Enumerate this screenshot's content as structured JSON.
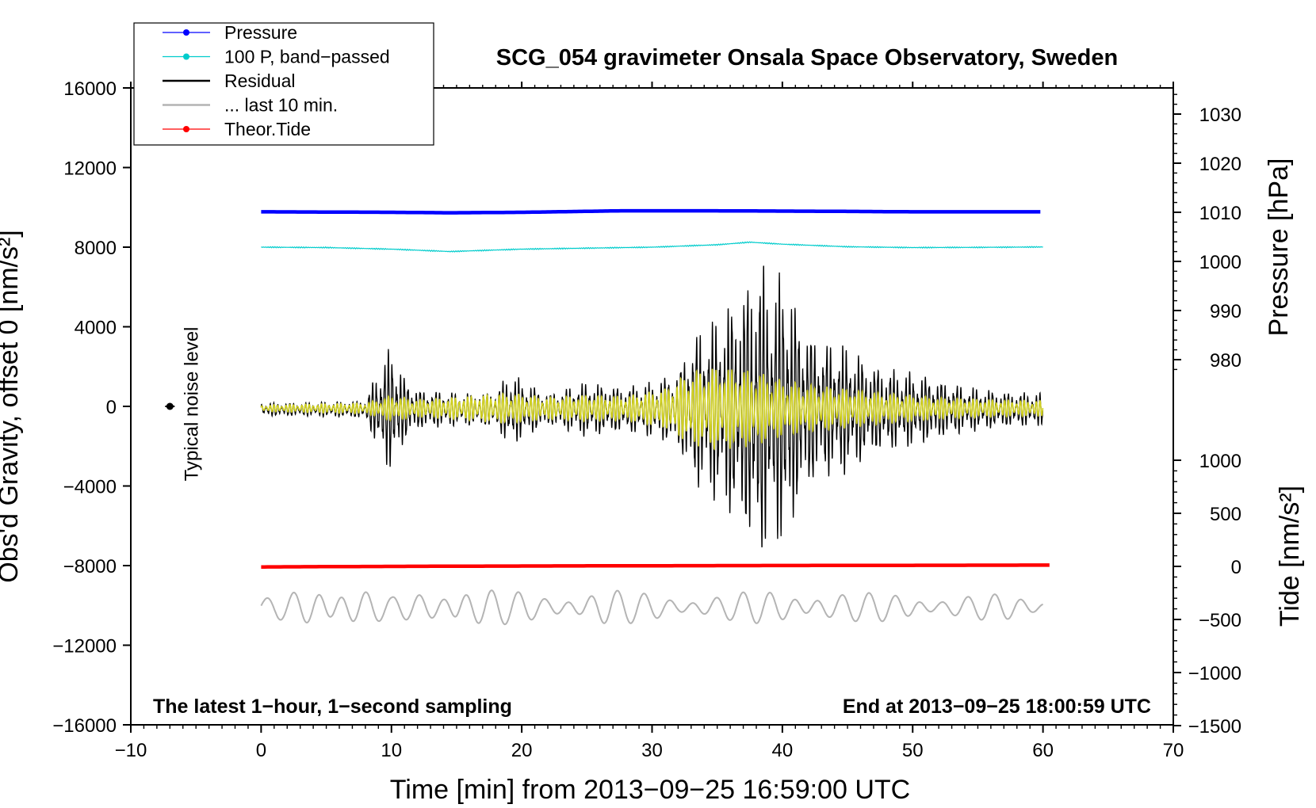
{
  "chart_data": {
    "type": "line",
    "title": "SCG_054 gravimeter Onsala Space Observatory, Sweden",
    "xlabel": "Time [min] from 2013−09−25 16:59:00 UTC",
    "ylabel": "Obs'd Gravity, offset 0 [nm/s²]",
    "ylabel_right_top": "Pressure [hPa]",
    "ylabel_right_bottom": "Tide [nm/s²]",
    "xlim": [
      -10,
      70
    ],
    "ylim": [
      -16000,
      16000
    ],
    "pressure_lim": [
      976,
      1034
    ],
    "tide_lim": [
      -1500,
      1500
    ],
    "xticks": [
      -10,
      0,
      10,
      20,
      30,
      40,
      50,
      60,
      70
    ],
    "yticks": [
      -16000,
      -12000,
      -8000,
      -4000,
      0,
      4000,
      8000,
      12000,
      16000
    ],
    "pressure_ticks": [
      980,
      990,
      1000,
      1010,
      1020,
      1030
    ],
    "tide_ticks": [
      -1500,
      -1000,
      -500,
      0,
      500,
      1000
    ],
    "x_tick_labels": [
      "−10",
      "0",
      "10",
      "20",
      "30",
      "40",
      "50",
      "60",
      "70"
    ],
    "y_tick_labels": [
      "−16000",
      "−12000",
      "−8000",
      "−4000",
      "0",
      "4000",
      "8000",
      "12000",
      "16000"
    ],
    "pressure_tick_labels": [
      "980",
      "990",
      "1000",
      "1010",
      "1020",
      "1030"
    ],
    "tide_tick_labels": [
      "−1500",
      "−1000",
      "−500",
      "0",
      "500",
      "1000"
    ],
    "annotation_left": "The latest 1−hour, 1−second sampling",
    "annotation_right": "End at 2013−09−25 18:00:59 UTC",
    "noise_label": "Typical noise level",
    "noise_point": {
      "x": -7,
      "y": 0
    },
    "legend": [
      {
        "label": "Pressure",
        "color": "#0000ff",
        "marker": true
      },
      {
        "label": "100 P, band−passed",
        "color": "#00cccc",
        "marker": true
      },
      {
        "label": "Residual",
        "color": "#000000",
        "marker": false
      },
      {
        "label": "... last 10 min.",
        "color": "#b4b4b4",
        "marker": false
      },
      {
        "label": "Theor.Tide",
        "color": "#ff0000",
        "marker": true
      }
    ],
    "series": [
      {
        "name": "Pressure",
        "axis": "pressure",
        "color": "#0000ff",
        "x": [
          0,
          10,
          14.5,
          20,
          27.5,
          35,
          44,
          50,
          60
        ],
        "values": [
          1010.1,
          1010.0,
          1009.9,
          1010.0,
          1010.3,
          1010.3,
          1010.2,
          1010.1,
          1010.1
        ]
      },
      {
        "name": "100 P, band−passed",
        "axis": "gravity",
        "color": "#00cccc",
        "x": [
          0,
          5,
          10,
          14.5,
          20,
          25,
          30,
          35,
          37.5,
          40,
          45,
          50,
          55,
          60
        ],
        "values": [
          8000,
          7980,
          7900,
          7780,
          7900,
          7950,
          8000,
          8120,
          8250,
          8150,
          8020,
          7980,
          7990,
          8010
        ]
      },
      {
        "name": "Residual",
        "axis": "gravity",
        "color": "#000000",
        "x": [
          0,
          4,
          8,
          9,
          10,
          11,
          12,
          15,
          18,
          19,
          22,
          25,
          28,
          30,
          32,
          33,
          34,
          35,
          36,
          37,
          37.8,
          38.5,
          39.2,
          40.2,
          41,
          42,
          43,
          45,
          47,
          49,
          51,
          54,
          57,
          60
        ],
        "values": [
          300,
          300,
          400,
          1800,
          2800,
          1400,
          900,
          700,
          800,
          1600,
          700,
          1200,
          1000,
          1200,
          1700,
          3200,
          3600,
          4000,
          4800,
          5400,
          6600,
          6500,
          5200,
          6300,
          4600,
          3600,
          3000,
          2800,
          2000,
          1700,
          1500,
          1000,
          800,
          700
        ]
      },
      {
        "name": "Band−passed residual",
        "axis": "gravity",
        "color": "#d0d020",
        "x": [
          0,
          8,
          10,
          12,
          15,
          19,
          22,
          25,
          28,
          31,
          33,
          35,
          37,
          38,
          40,
          42,
          45,
          48,
          52,
          56,
          60
        ],
        "values": [
          150,
          250,
          600,
          400,
          500,
          700,
          500,
          600,
          550,
          900,
          1700,
          1900,
          1800,
          1700,
          1300,
          1100,
          900,
          700,
          500,
          400,
          350
        ]
      },
      {
        "name": "... last 10 min.",
        "axis": "gravity",
        "color": "#b4b4b4",
        "offset": -10000,
        "x": [
          0,
          2,
          4,
          5,
          7,
          10,
          14,
          15,
          18,
          22,
          26,
          28,
          32,
          36,
          40,
          43,
          46,
          50,
          52,
          55,
          57,
          60
        ],
        "values": [
          400,
          700,
          1200,
          1400,
          1200,
          500,
          1000,
          1400,
          900,
          600,
          1000,
          800,
          600,
          700,
          900,
          800,
          700,
          800,
          500,
          600,
          700,
          500
        ]
      },
      {
        "name": "Theor.Tide",
        "axis": "tide",
        "color": "#ff0000",
        "x": [
          0,
          5.5,
          15,
          25.5,
          39,
          60.5
        ],
        "values": [
          -5,
          -2,
          2,
          5,
          8,
          12
        ]
      }
    ]
  }
}
